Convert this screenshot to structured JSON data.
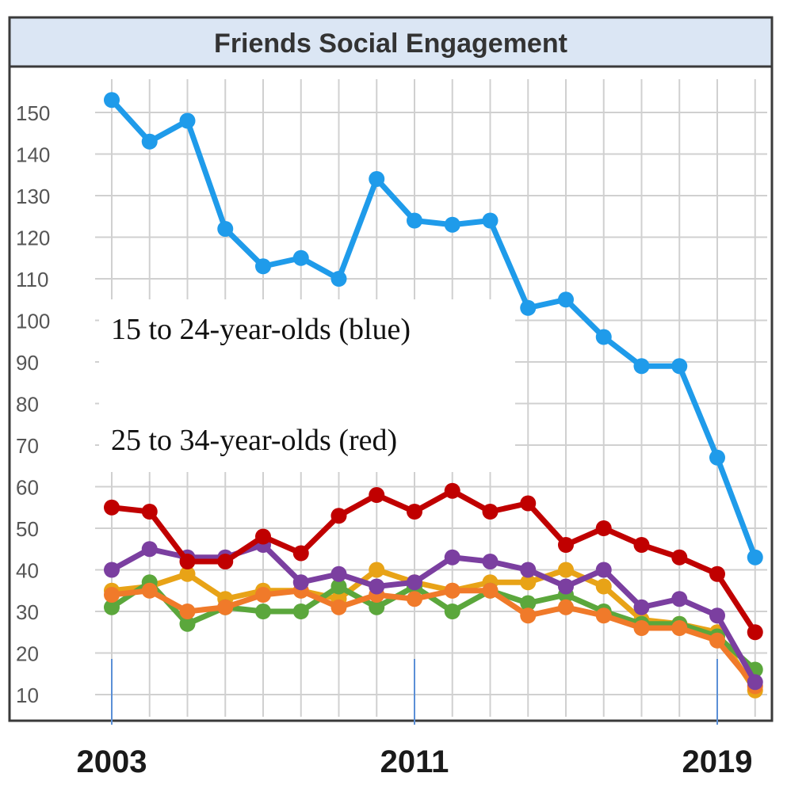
{
  "chart_data": {
    "type": "line",
    "title": "Friends Social Engagement",
    "xlabel": "",
    "ylabel": "",
    "ylim": [
      10,
      150
    ],
    "yticks": [
      10,
      20,
      30,
      40,
      50,
      60,
      70,
      80,
      90,
      100,
      110,
      120,
      130,
      140,
      150
    ],
    "x": [
      2003,
      2004,
      2005,
      2006,
      2007,
      2008,
      2009,
      2010,
      2011,
      2012,
      2013,
      2014,
      2015,
      2016,
      2017,
      2018,
      2019,
      2020
    ],
    "xtick_labels": [
      "2003",
      "2011",
      "2019"
    ],
    "xtick_values": [
      2003,
      2011,
      2019
    ],
    "grid": true,
    "annotations": [
      "15 to 24-year-olds (blue)",
      "25 to 34-year-olds (red)"
    ],
    "series": [
      {
        "color": "#1f9bea",
        "values": [
          153,
          143,
          148,
          122,
          113,
          115,
          110,
          134,
          124,
          123,
          124,
          103,
          105,
          96,
          89,
          89,
          67,
          43
        ]
      },
      {
        "color": "#e8a317",
        "values": [
          35,
          36,
          39,
          33,
          35,
          35,
          33,
          40,
          37,
          35,
          37,
          37,
          40,
          36,
          28,
          27,
          25,
          11
        ]
      },
      {
        "color": "#5ba73c",
        "values": [
          31,
          37,
          27,
          31,
          30,
          30,
          36,
          31,
          36,
          30,
          35,
          32,
          34,
          30,
          27,
          27,
          24,
          16
        ]
      },
      {
        "color": "#f07a2a",
        "values": [
          34,
          35,
          30,
          31,
          34,
          35,
          31,
          34,
          33,
          35,
          35,
          29,
          31,
          29,
          26,
          26,
          23,
          12
        ]
      },
      {
        "color": "#7b3fa0",
        "values": [
          40,
          45,
          43,
          43,
          46,
          37,
          39,
          36,
          37,
          43,
          42,
          40,
          36,
          40,
          31,
          33,
          29,
          13
        ]
      },
      {
        "color": "#c00000",
        "values": [
          55,
          54,
          42,
          42,
          48,
          44,
          53,
          58,
          54,
          59,
          54,
          56,
          46,
          50,
          46,
          43,
          39,
          25
        ]
      }
    ]
  }
}
